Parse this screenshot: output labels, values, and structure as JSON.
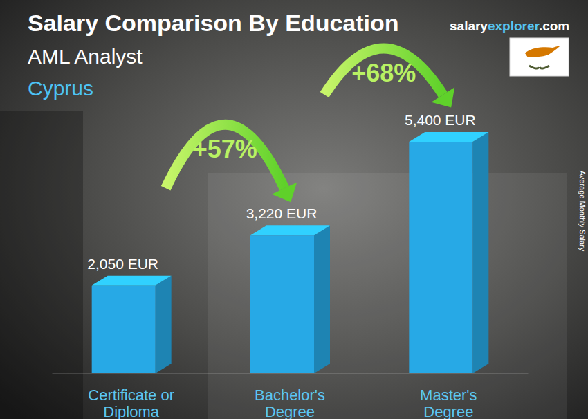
{
  "chart_data": {
    "type": "bar",
    "title": "Salary Comparison By Education",
    "subtitle": [
      "AML Analyst",
      "Cyprus"
    ],
    "source": [
      "salary",
      "explorer",
      ".com"
    ],
    "ylabel": "Average Monthly Salary",
    "categories": [
      "Certificate or Diploma",
      "Bachelor's Degree",
      "Master's Degree"
    ],
    "values": [
      2050,
      3220,
      5400
    ],
    "value_labels": [
      "2,050 EUR",
      "3,220 EUR",
      "5,400 EUR"
    ],
    "annotations": [
      "+57%",
      "+68%"
    ],
    "color": "#27a9e6",
    "data_labels": true,
    "tick_labels": "x",
    "grid": false
  }
}
